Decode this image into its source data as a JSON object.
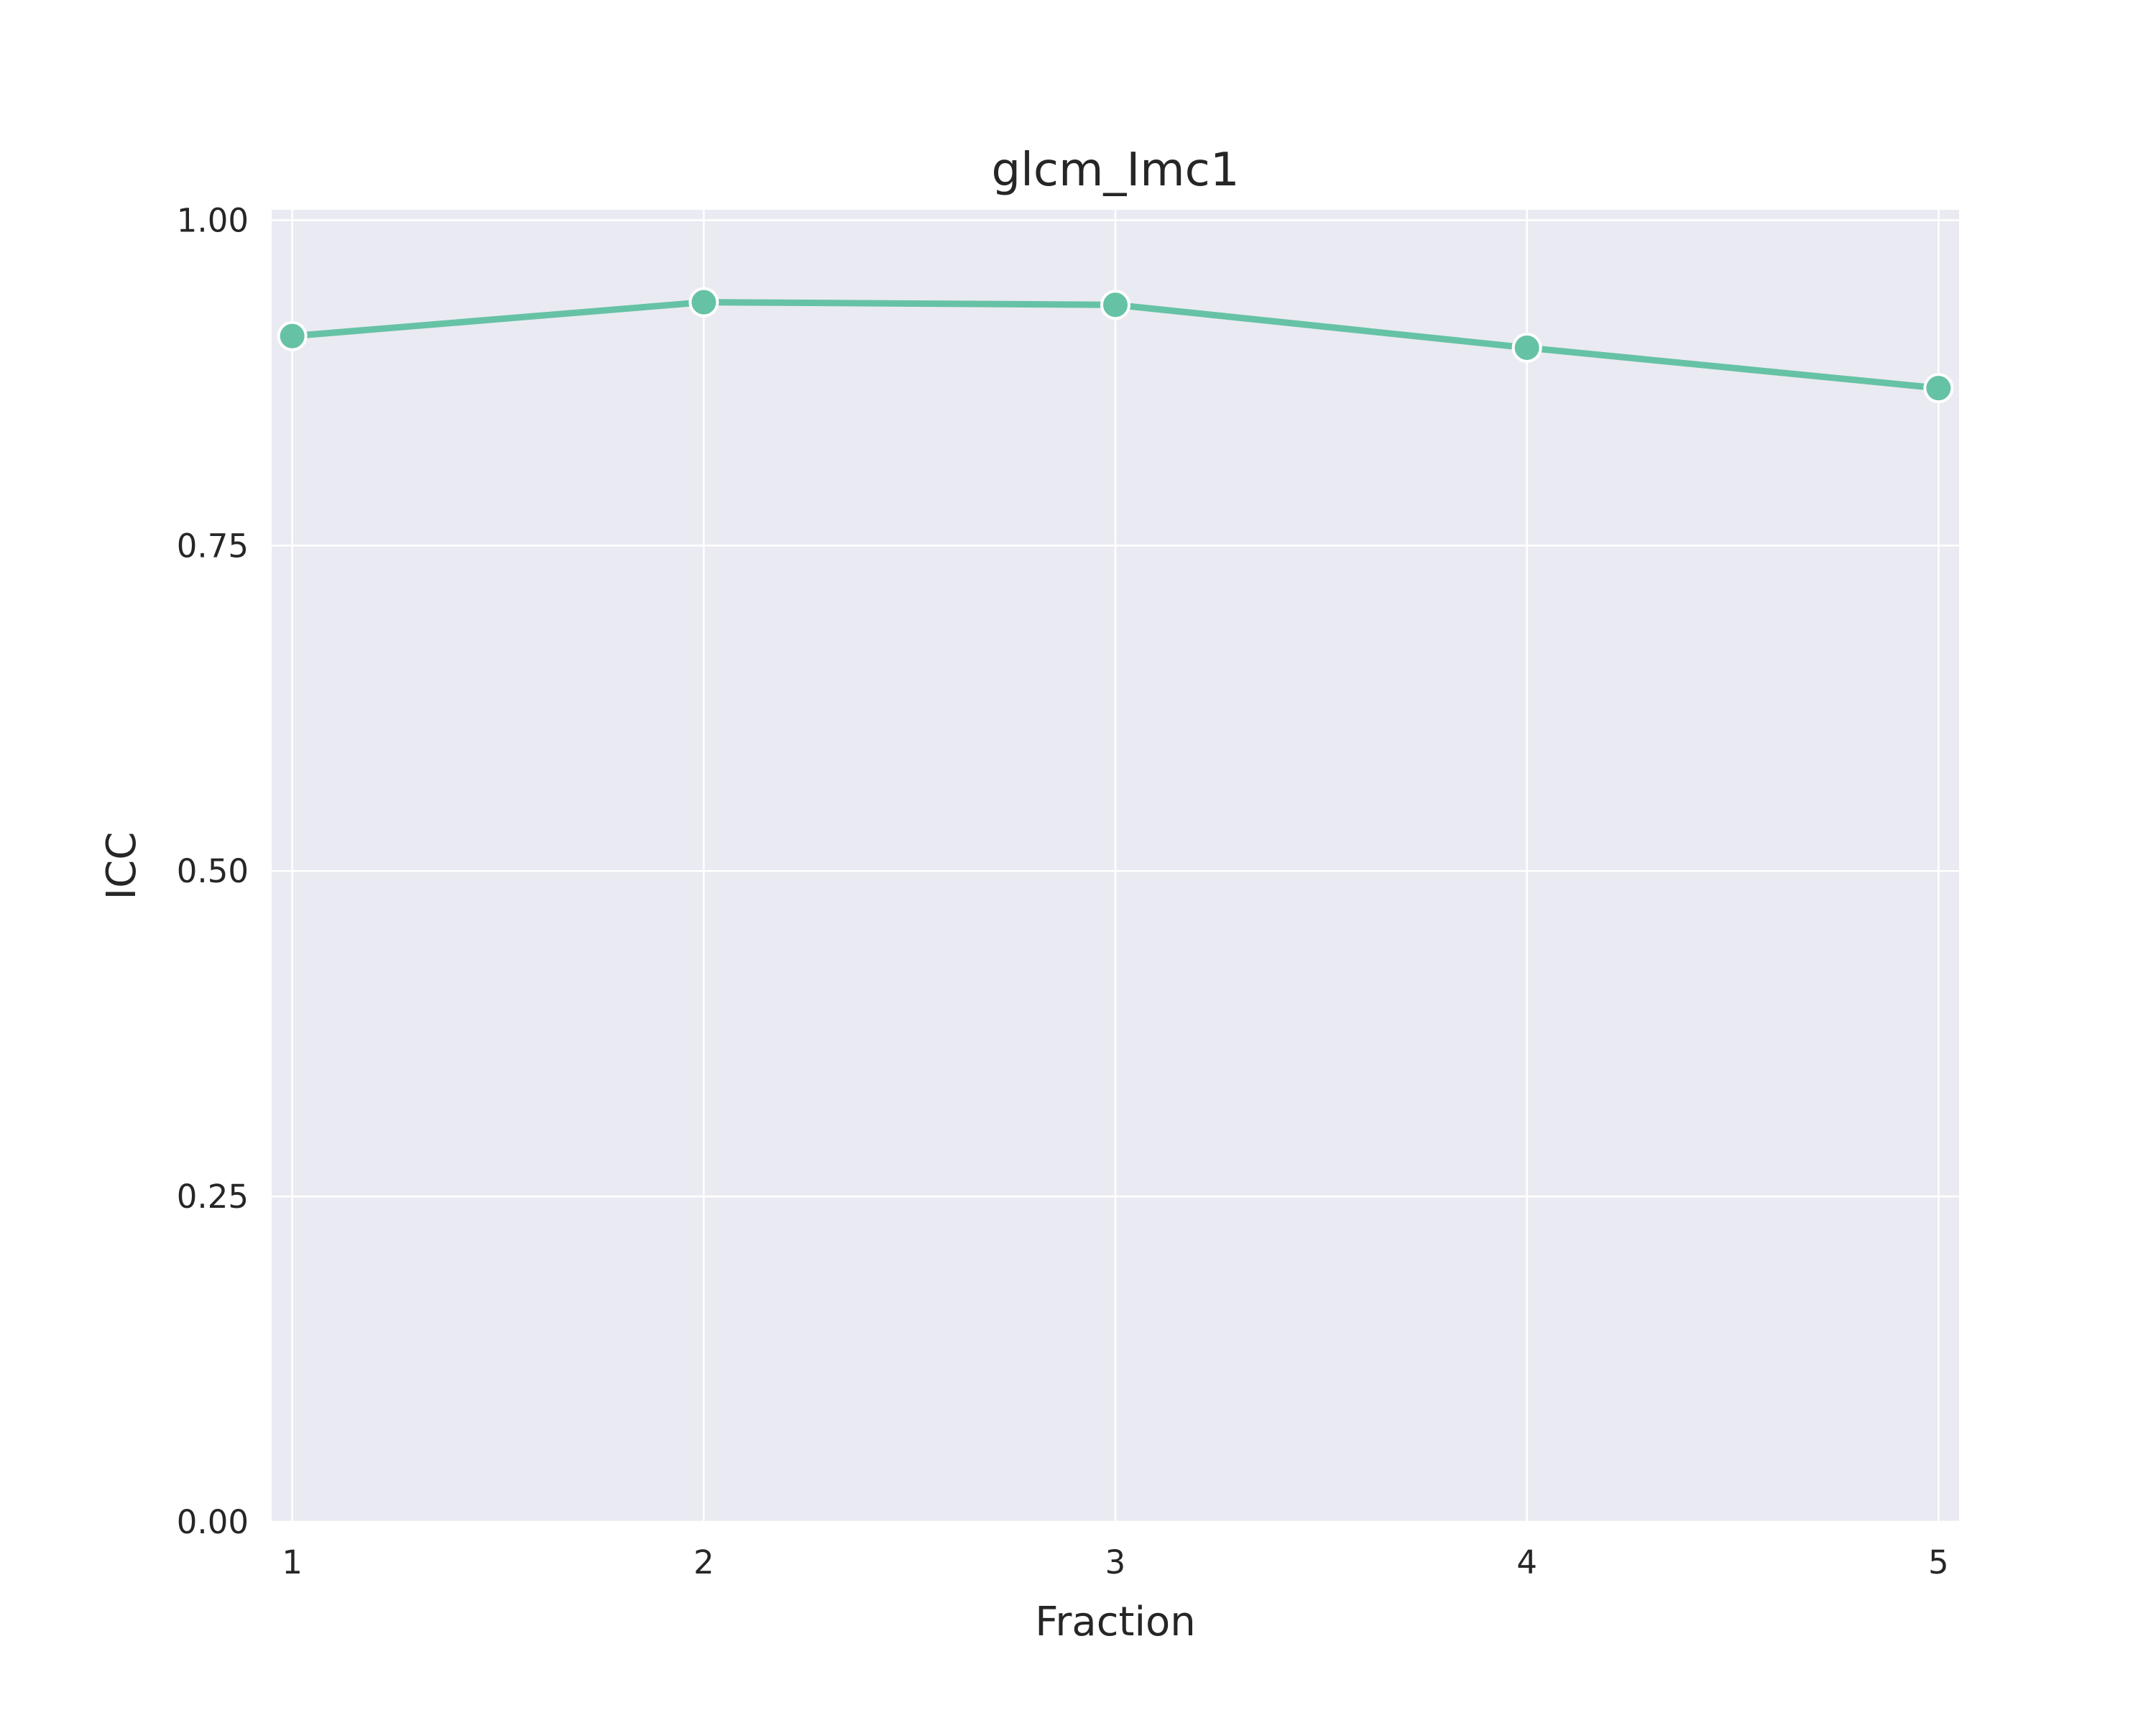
{
  "chart_data": {
    "type": "line",
    "title": "glcm_Imc1",
    "xlabel": "Fraction",
    "ylabel": "ICC",
    "x": [
      1,
      2,
      3,
      4,
      5
    ],
    "x_tick_labels": [
      "1",
      "2",
      "3",
      "4",
      "5"
    ],
    "y_ticks": [
      0.0,
      0.25,
      0.5,
      0.75,
      1.0
    ],
    "y_tick_labels": [
      "0.00",
      "0.25",
      "0.50",
      "0.75",
      "1.00"
    ],
    "ylim": [
      0,
      1.0
    ],
    "xlim": [
      0.95,
      5.05
    ],
    "series": [
      {
        "values": [
          0.911,
          0.937,
          0.935,
          0.902,
          0.871
        ],
        "color": "#66c2a5",
        "marker": "circle"
      }
    ],
    "grid": true,
    "background_color": "#eaeaf2",
    "grid_color": "#ffffff"
  }
}
